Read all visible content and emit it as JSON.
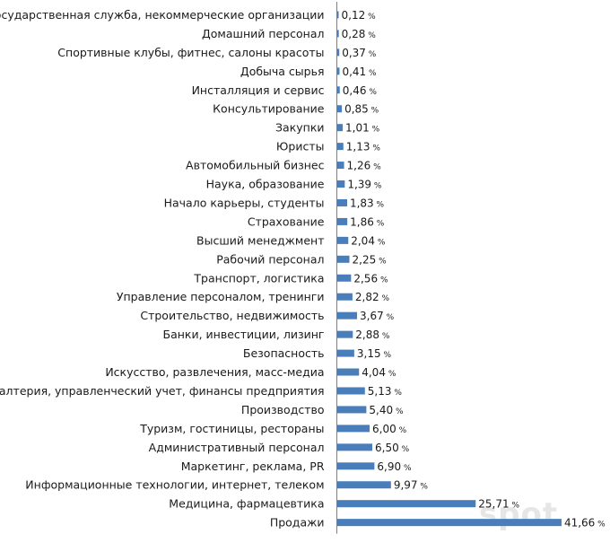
{
  "chart_data": {
    "type": "bar",
    "orientation": "horizontal",
    "categories": [
      "Государственная служба, некоммерческие организации",
      "Домашний персонал",
      "Спортивные клубы, фитнес, салоны красоты",
      "Добыча сырья",
      "Инсталляция и сервис",
      "Консультирование",
      "Закупки",
      "Юристы",
      "Автомобильный бизнес",
      "Наука, образование",
      "Начало карьеры, студенты",
      "Страхование",
      "Высший менеджмент",
      "Рабочий персонал",
      "Транспорт, логистика",
      "Управление персоналом, тренинги",
      "Строительство, недвижимость",
      "Банки, инвестиции, лизинг",
      "Безопасность",
      "Искусство, развлечения, масс-медиа",
      "Бухгалтерия, управленческий учет, финансы предприятия",
      "Производство",
      "Туризм, гостиницы, рестораны",
      "Административный персонал",
      "Маркетинг, реклама, PR",
      "Информационные технологии, интернет, телеком",
      "Медицина, фармацевтика",
      "Продажи"
    ],
    "values": [
      0.12,
      0.28,
      0.37,
      0.41,
      0.46,
      0.85,
      1.01,
      1.13,
      1.26,
      1.39,
      1.83,
      1.86,
      2.04,
      2.25,
      2.56,
      2.82,
      3.67,
      2.88,
      3.15,
      4.04,
      5.13,
      5.4,
      6.0,
      6.5,
      6.9,
      9.97,
      25.71,
      41.66
    ],
    "value_labels": [
      "0,12",
      "0,28",
      "0,37",
      "0,41",
      "0,46",
      "0,85",
      "1,01",
      "1,13",
      "1,26",
      "1,39",
      "1,83",
      "1,86",
      "2,04",
      "2,25",
      "2,56",
      "2,82",
      "3,67",
      "2,88",
      "3,15",
      "4,04",
      "5,13",
      "5,40",
      "6,00",
      "6,50",
      "6,90",
      "9,97",
      "25,71",
      "41,66"
    ],
    "unit": "%",
    "xlim": [
      0,
      42
    ],
    "grid": false,
    "bar_color": "#4a7ebb"
  },
  "watermark": "spot"
}
